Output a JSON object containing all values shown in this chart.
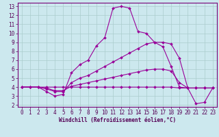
{
  "xlabel": "Windchill (Refroidissement éolien,°C)",
  "bg_color": "#cce8ee",
  "grid_color": "#aacccc",
  "line_color": "#990099",
  "xlim": [
    -0.5,
    23.5
  ],
  "ylim": [
    1.8,
    13.4
  ],
  "xticks": [
    0,
    1,
    2,
    3,
    4,
    5,
    6,
    7,
    8,
    9,
    10,
    11,
    12,
    13,
    14,
    15,
    16,
    17,
    18,
    19,
    20,
    21,
    22,
    23
  ],
  "yticks": [
    2,
    3,
    4,
    5,
    6,
    7,
    8,
    9,
    10,
    11,
    12,
    13
  ],
  "series": [
    [
      4.0,
      4.0,
      4.0,
      3.5,
      3.0,
      3.2,
      5.6,
      6.5,
      7.0,
      8.6,
      9.5,
      12.8,
      13.0,
      12.8,
      10.2,
      10.0,
      9.0,
      8.5,
      6.3,
      4.0,
      3.9,
      2.15,
      2.3,
      3.9
    ],
    [
      4.0,
      4.0,
      4.0,
      3.8,
      3.5,
      3.5,
      4.5,
      5.0,
      5.3,
      5.8,
      6.3,
      6.8,
      7.3,
      7.8,
      8.3,
      8.8,
      9.0,
      9.0,
      8.8,
      7.2,
      3.9,
      3.9,
      3.9,
      3.9
    ],
    [
      4.0,
      4.0,
      4.0,
      3.9,
      3.6,
      3.6,
      4.1,
      4.3,
      4.5,
      4.7,
      4.9,
      5.1,
      5.3,
      5.5,
      5.7,
      5.9,
      6.0,
      6.0,
      5.8,
      4.5,
      3.9,
      3.9,
      3.9,
      3.9
    ],
    [
      4.0,
      4.0,
      4.0,
      4.0,
      4.0,
      4.0,
      4.0,
      4.0,
      4.0,
      4.0,
      4.0,
      4.0,
      4.0,
      4.0,
      4.0,
      4.0,
      4.0,
      4.0,
      4.0,
      3.9,
      3.9,
      3.9,
      3.9,
      3.9
    ]
  ],
  "markersize": 2.0,
  "linewidth": 0.8,
  "tick_fontsize": 5.5,
  "xlabel_fontsize": 5.5
}
